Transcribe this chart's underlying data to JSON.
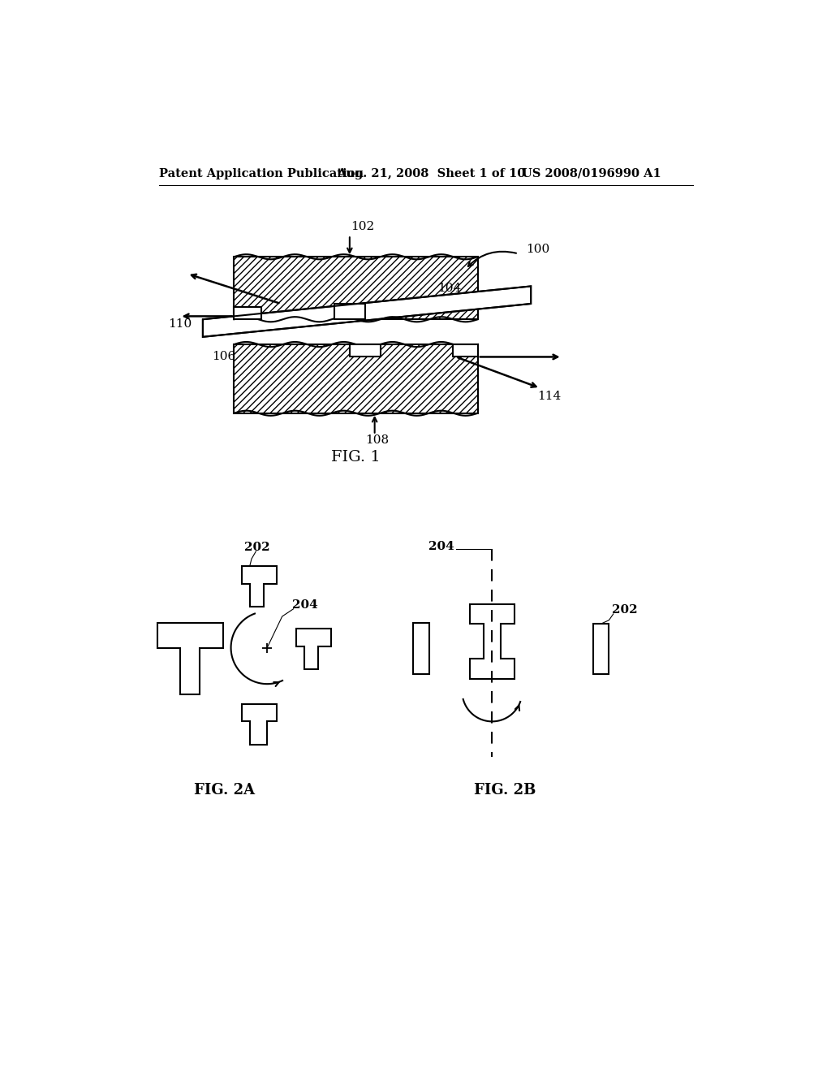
{
  "header_left": "Patent Application Publication",
  "header_mid": "Aug. 21, 2008  Sheet 1 of 10",
  "header_right": "US 2008/0196990 A1",
  "fig1_label": "FIG. 1",
  "fig2a_label": "FIG. 2A",
  "fig2b_label": "FIG. 2B",
  "bg_color": "#ffffff",
  "line_color": "#000000",
  "label_100": "100",
  "label_102": "102",
  "label_104": "104",
  "label_106": "106",
  "label_108": "108",
  "label_110": "110",
  "label_114": "114",
  "label_202a": "202",
  "label_202b": "202",
  "label_204a": "204",
  "label_204b": "204"
}
